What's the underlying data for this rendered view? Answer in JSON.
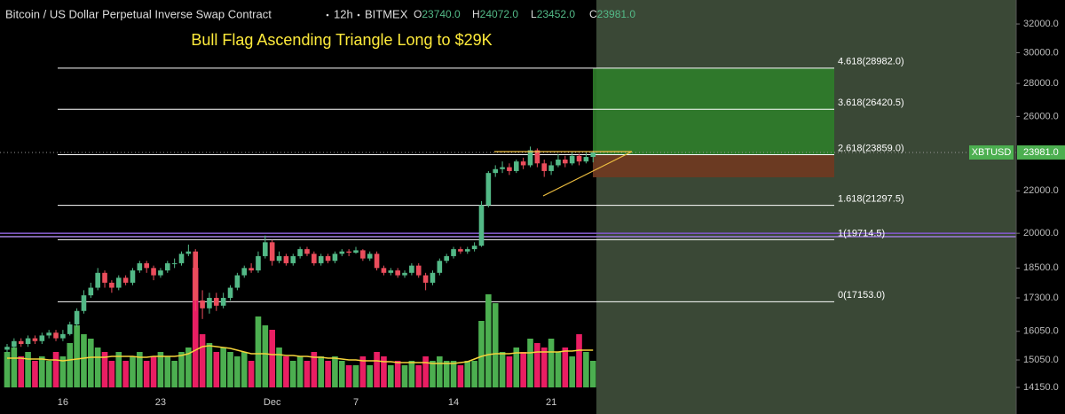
{
  "chart_data": {
    "type": "candlestick",
    "header": {
      "symbol_name": "Bitcoin / US Dollar Perpetual Inverse Swap Contract",
      "interval": "12h",
      "exchange": "BITMEX",
      "ohlc": [
        {
          "name": "O",
          "value": 23740,
          "label": "23740.0"
        },
        {
          "name": "H",
          "value": 24072,
          "label": "24072.0"
        },
        {
          "name": "L",
          "value": 23452,
          "label": "23452.0"
        },
        {
          "name": "C",
          "value": 23981,
          "label": "23981.0"
        }
      ]
    },
    "title": "Bull Flag Ascending Triangle Long to $29K",
    "categories": [
      null,
      null,
      null,
      null,
      null,
      null,
      null,
      null,
      "16",
      null,
      null,
      null,
      null,
      null,
      null,
      null,
      null,
      null,
      null,
      null,
      null,
      null,
      "23",
      null,
      null,
      null,
      null,
      null,
      null,
      null,
      null,
      null,
      null,
      null,
      null,
      null,
      null,
      null,
      "Dec",
      null,
      null,
      null,
      null,
      null,
      null,
      null,
      null,
      null,
      null,
      null,
      "7",
      null,
      null,
      null,
      null,
      null,
      null,
      null,
      null,
      null,
      null,
      null,
      null,
      null,
      "14",
      null,
      null,
      null,
      null,
      null,
      null,
      null,
      null,
      null,
      null,
      null,
      null,
      null,
      "21",
      null,
      null,
      null,
      null,
      null,
      null
    ],
    "open": [
      15400,
      15500,
      15700,
      15600,
      15800,
      15700,
      15900,
      16000,
      15800,
      15950,
      16300,
      16800,
      17400,
      17700,
      18300,
      17900,
      17700,
      18100,
      17900,
      18400,
      18700,
      18500,
      18200,
      18400,
      18700,
      18700,
      19100,
      19200,
      17200,
      16900,
      17300,
      17000,
      17300,
      17700,
      18200,
      18500,
      18400,
      19000,
      19600,
      18800,
      19000,
      18700,
      19000,
      19300,
      19100,
      18700,
      19000,
      18800,
      19100,
      19200,
      19150,
      19250,
      18900,
      19100,
      18500,
      18300,
      18400,
      18200,
      18300,
      18600,
      18200,
      17900,
      18300,
      18800,
      19000,
      19300,
      19200,
      19300,
      19450,
      21300,
      22900,
      23100,
      23200,
      23000,
      23500,
      23300,
      24100,
      23400,
      23000,
      23300,
      23600,
      23400,
      23800,
      23500,
      23740
    ],
    "high": [
      15600,
      15800,
      15800,
      15900,
      15900,
      16000,
      16100,
      16100,
      16100,
      16400,
      16900,
      17600,
      17900,
      18500,
      18400,
      18000,
      18200,
      18200,
      18500,
      18800,
      18800,
      18600,
      18500,
      18800,
      18900,
      19200,
      19500,
      19300,
      17600,
      17500,
      17500,
      17500,
      17800,
      18300,
      18600,
      18700,
      19200,
      19900,
      19700,
      19200,
      19100,
      19100,
      19400,
      19400,
      19200,
      19100,
      19100,
      19200,
      19300,
      19300,
      19400,
      19300,
      19200,
      19200,
      18600,
      18500,
      18500,
      18400,
      18700,
      18700,
      18300,
      18400,
      18900,
      19100,
      19400,
      19400,
      19400,
      19600,
      21500,
      23000,
      23300,
      23500,
      23400,
      23600,
      23700,
      24300,
      24200,
      23600,
      23500,
      23900,
      23800,
      24000,
      23900,
      24000,
      24072
    ],
    "low": [
      15300,
      15400,
      15500,
      15500,
      15600,
      15600,
      15800,
      15700,
      15700,
      15900,
      16200,
      16700,
      17300,
      17600,
      17700,
      17500,
      17600,
      17800,
      17800,
      18300,
      18300,
      18000,
      18100,
      18300,
      18500,
      18600,
      19000,
      16800,
      16500,
      16700,
      16800,
      16900,
      17200,
      17600,
      18100,
      18300,
      18300,
      18900,
      18600,
      18700,
      18600,
      18600,
      18900,
      19000,
      18600,
      18600,
      18700,
      18700,
      19000,
      19000,
      19100,
      18800,
      18800,
      18400,
      18200,
      18200,
      18100,
      18100,
      18200,
      18100,
      17600,
      17800,
      18200,
      18700,
      18900,
      19100,
      19100,
      19200,
      19400,
      21200,
      22700,
      22900,
      22800,
      22900,
      23100,
      23200,
      23200,
      22700,
      22800,
      23200,
      23200,
      23300,
      23300,
      23400,
      23452
    ],
    "close": [
      15500,
      15700,
      15600,
      15800,
      15700,
      15900,
      16000,
      15800,
      15950,
      16300,
      16800,
      17400,
      17700,
      18300,
      17900,
      17700,
      18100,
      17900,
      18400,
      18700,
      18500,
      18200,
      18400,
      18700,
      18700,
      19100,
      19200,
      17200,
      16900,
      17300,
      17000,
      17300,
      17700,
      18200,
      18500,
      18400,
      19000,
      19600,
      18800,
      19000,
      18700,
      19000,
      19300,
      19100,
      18700,
      19000,
      18800,
      19100,
      19200,
      19150,
      19250,
      18900,
      19100,
      18500,
      18300,
      18400,
      18200,
      18300,
      18600,
      18200,
      17900,
      18300,
      18800,
      19000,
      19300,
      19200,
      19300,
      19450,
      21300,
      22900,
      23100,
      23200,
      23000,
      23500,
      23300,
      24100,
      23400,
      23000,
      23300,
      23600,
      23400,
      23800,
      23500,
      23740,
      23981
    ],
    "up_color": "#53b987",
    "down_color": "#eb4d5c",
    "volume": {
      "values": [
        40,
        45,
        35,
        40,
        30,
        35,
        30,
        40,
        35,
        50,
        70,
        60,
        55,
        45,
        40,
        30,
        40,
        30,
        35,
        40,
        30,
        35,
        40,
        35,
        30,
        40,
        45,
        135,
        60,
        50,
        40,
        45,
        40,
        35,
        40,
        30,
        80,
        70,
        65,
        45,
        35,
        30,
        35,
        30,
        40,
        35,
        30,
        35,
        30,
        25,
        25,
        35,
        25,
        40,
        35,
        25,
        30,
        25,
        30,
        25,
        35,
        30,
        35,
        30,
        30,
        25,
        30,
        30,
        75,
        105,
        95,
        40,
        35,
        45,
        40,
        55,
        50,
        45,
        55,
        40,
        45,
        35,
        60,
        40,
        30
      ],
      "up_color": "#4caf50",
      "down_color": "#e91e63"
    },
    "volume_ma": {
      "color": "#f5d33a",
      "values": [
        33,
        33,
        33,
        32,
        32,
        32,
        31,
        31,
        30,
        31,
        32,
        33,
        34,
        34,
        34,
        35,
        35,
        35,
        35,
        34,
        34,
        35,
        35,
        35,
        35,
        36,
        38,
        42,
        46,
        47,
        46,
        45,
        44,
        42,
        40,
        38,
        38,
        38,
        37,
        37,
        36,
        36,
        35,
        35,
        34,
        34,
        33,
        33,
        32,
        31,
        31,
        30,
        30,
        30,
        29,
        29,
        28,
        28,
        28,
        28,
        28,
        27,
        27,
        27,
        27,
        28,
        29,
        32,
        35,
        37,
        38,
        38,
        38,
        39,
        39,
        39,
        40,
        40,
        40,
        40,
        41,
        41,
        42,
        42,
        42
      ]
    },
    "ylim": [
      13330,
      33770
    ],
    "log_scale": true,
    "yticks": [
      {
        "value": 32000,
        "label": "32000.0"
      },
      {
        "value": 30000,
        "label": "30000.0"
      },
      {
        "value": 28000,
        "label": "28000.0"
      },
      {
        "value": 26000,
        "label": "26000.0"
      },
      {
        "value": 22000,
        "label": "22000.0"
      },
      {
        "value": 20000,
        "label": "20000.0"
      },
      {
        "value": 18500,
        "label": "18500.0"
      },
      {
        "value": 17300,
        "label": "17300.0"
      },
      {
        "value": 16050,
        "label": "16050.0"
      },
      {
        "value": 15050,
        "label": "15050.0"
      },
      {
        "value": 14150,
        "label": "14150.0"
      }
    ],
    "fib_levels": [
      {
        "value": 28982,
        "label": "4.618(28982.0)"
      },
      {
        "value": 26420.5,
        "label": "3.618(26420.5)"
      },
      {
        "value": 23859,
        "label": "2.618(23859.0)"
      },
      {
        "value": 21297.5,
        "label": "1.618(21297.5)"
      },
      {
        "value": 19714.5,
        "label": "1(19714.5)"
      },
      {
        "value": 17153,
        "label": "0(17153.0)"
      }
    ],
    "horizontal_lines": [
      {
        "value": 20000,
        "color": "#7e57c2"
      },
      {
        "value": 19850,
        "color": "#9575cd"
      }
    ],
    "position": {
      "entry": 23859,
      "target": 28982,
      "stop": 22680,
      "target_color": "#2f7d2a",
      "stop_color": "#6e3a22"
    },
    "last_price": {
      "symbol": "XBTUSD",
      "value": 23981,
      "label": "23981.0",
      "color": "#4caf50"
    }
  }
}
